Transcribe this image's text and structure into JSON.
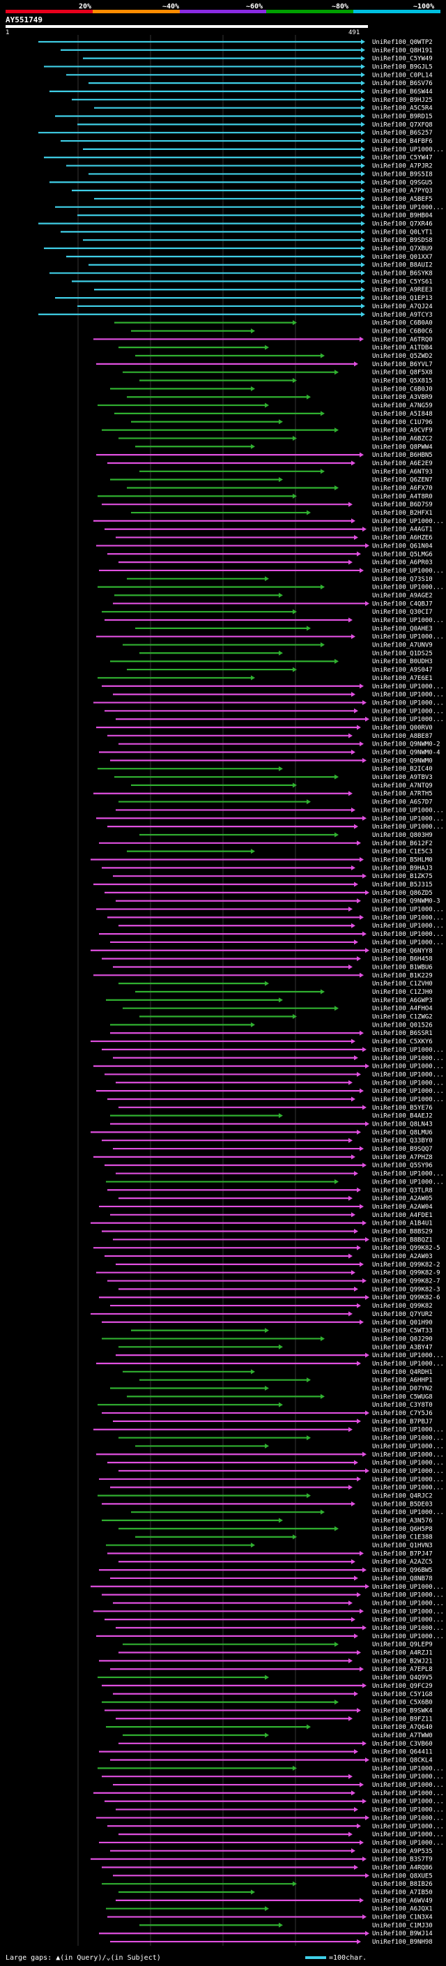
{
  "legend": {
    "ticks": [
      "20%",
      "~40%",
      "~60%",
      "~80%",
      "~100%"
    ],
    "colors": [
      "#e8001c",
      "#ff8c00",
      "#8a2be2",
      "#00a000",
      "#00c0e0"
    ]
  },
  "query": {
    "id": "AY551749",
    "start": "1",
    "end": "491"
  },
  "hits": [
    {
      "label": "UniRef100_Q0WTP2",
      "color": "#40d0e8"
    },
    {
      "label": "UniRef100_Q8H191",
      "color": "#40d0e8"
    },
    {
      "label": "UniRef100_C5YW49",
      "color": "#40d0e8"
    },
    {
      "label": "UniRef100_B9GJL5",
      "color": "#40d0e8"
    },
    {
      "label": "UniRef100_C0PL14",
      "color": "#40d0e8"
    },
    {
      "label": "UniRef100_B6SV76",
      "color": "#40d0e8"
    },
    {
      "label": "UniRef100_B6SW44",
      "color": "#40d0e8"
    },
    {
      "label": "UniRef100_B9HJ25",
      "color": "#40d0e8"
    },
    {
      "label": "UniRef100_A5C5R4",
      "color": "#40d0e8"
    },
    {
      "label": "UniRef100_B9RD15",
      "color": "#40d0e8"
    },
    {
      "label": "UniRef100_Q7XFQ8",
      "color": "#40d0e8"
    },
    {
      "label": "UniRef100_B6S257",
      "color": "#40d0e8"
    },
    {
      "label": "UniRef100_B4FBF6",
      "color": "#40d0e8"
    },
    {
      "label": "UniRef100_UP1000...",
      "color": "#40d0e8"
    },
    {
      "label": "UniRef100_C5YW47",
      "color": "#40d0e8"
    },
    {
      "label": "UniRef100_A7PJR2",
      "color": "#40d0e8"
    },
    {
      "label": "UniRef100_B9S5I8",
      "color": "#40d0e8"
    },
    {
      "label": "UniRef100_Q9SGU5",
      "color": "#40d0e8"
    },
    {
      "label": "UniRef100_A7PYQ3",
      "color": "#40d0e8"
    },
    {
      "label": "UniRef100_A5BEF5",
      "color": "#40d0e8"
    },
    {
      "label": "UniRef100_UP1000...",
      "color": "#40d0e8"
    },
    {
      "label": "UniRef100_B9HB04",
      "color": "#40d0e8"
    },
    {
      "label": "UniRef100_Q7XR46",
      "color": "#40d0e8"
    },
    {
      "label": "UniRef100_Q0LYT1",
      "color": "#40d0e8"
    },
    {
      "label": "UniRef100_B9SDS8",
      "color": "#40d0e8"
    },
    {
      "label": "UniRef100_Q7XBU9",
      "color": "#40d0e8"
    },
    {
      "label": "UniRef100_Q01XX7",
      "color": "#40d0e8"
    },
    {
      "label": "UniRef100_B8AUI2",
      "color": "#40d0e8"
    },
    {
      "label": "UniRef100_B6SYK8",
      "color": "#40d0e8"
    },
    {
      "label": "UniRef100_C5YS61",
      "color": "#40d0e8"
    },
    {
      "label": "UniRef100_A9REE3",
      "color": "#40d0e8"
    },
    {
      "label": "UniRef100_Q1EP13",
      "color": "#40d0e8"
    },
    {
      "label": "UniRef100_A7QJ24",
      "color": "#40d0e8"
    },
    {
      "label": "UniRef100_A9TCY3",
      "color": "#40d0e8"
    },
    {
      "label": "UniRef100_C6B0A0",
      "color": "#30b030"
    },
    {
      "label": "UniRef100_C6B0C6",
      "color": "#30b030"
    },
    {
      "label": "UniRef100_A6TRQ0",
      "color": "#e050e0"
    },
    {
      "label": "UniRef100_A1TDB4",
      "color": "#30b030"
    },
    {
      "label": "UniRef100_Q5ZWD2",
      "color": "#30b030"
    },
    {
      "label": "UniRef100_B6YVL7",
      "color": "#e050e0"
    },
    {
      "label": "UniRef100_Q8F5X8",
      "color": "#30b030"
    },
    {
      "label": "UniRef100_Q5X815",
      "color": "#30b030"
    },
    {
      "label": "UniRef100_C6B0J0",
      "color": "#30b030"
    },
    {
      "label": "UniRef100_A3VBR9",
      "color": "#30b030"
    },
    {
      "label": "UniRef100_A7NG59",
      "color": "#30b030"
    },
    {
      "label": "UniRef100_A5I848",
      "color": "#30b030"
    },
    {
      "label": "UniRef100_C1U796",
      "color": "#30b030"
    },
    {
      "label": "UniRef100_A9CVF9",
      "color": "#30b030"
    },
    {
      "label": "UniRef100_A6BZC2",
      "color": "#30b030"
    },
    {
      "label": "UniRef100_Q8PWW4",
      "color": "#30b030"
    },
    {
      "label": "UniRef100_B6HBN5",
      "color": "#e050e0"
    },
    {
      "label": "UniRef100_A6E2E9",
      "color": "#e050e0"
    },
    {
      "label": "UniRef100_A6NT93",
      "color": "#30b030"
    },
    {
      "label": "UniRef100_Q6ZEN7",
      "color": "#30b030"
    },
    {
      "label": "UniRef100_A6FX70",
      "color": "#30b030"
    },
    {
      "label": "UniRef100_A4T8R0",
      "color": "#30b030"
    },
    {
      "label": "UniRef100_B6D7S9",
      "color": "#e050e0"
    },
    {
      "label": "UniRef100_B2HFX1",
      "color": "#30b030"
    },
    {
      "label": "UniRef100_UP1000...",
      "color": "#e050e0"
    },
    {
      "label": "UniRef100_A4AGT1",
      "color": "#e050e0"
    },
    {
      "label": "UniRef100_A6HZE6",
      "color": "#e050e0"
    },
    {
      "label": "UniRef100_Q61N04",
      "color": "#e050e0"
    },
    {
      "label": "UniRef100_Q5LMG6",
      "color": "#e050e0"
    },
    {
      "label": "UniRef100_A6PR03",
      "color": "#e050e0"
    },
    {
      "label": "UniRef100_UP1000...",
      "color": "#e050e0"
    },
    {
      "label": "UniRef100_Q73S10",
      "color": "#30b030"
    },
    {
      "label": "UniRef100_UP1000...",
      "color": "#30b030"
    },
    {
      "label": "UniRef100_A9AGE2",
      "color": "#30b030"
    },
    {
      "label": "UniRef100_C4QBJ7",
      "color": "#e050e0"
    },
    {
      "label": "UniRef100_Q30CI7",
      "color": "#30b030"
    },
    {
      "label": "UniRef100_UP1000...",
      "color": "#e050e0"
    },
    {
      "label": "UniRef100_Q0AHE3",
      "color": "#30b030"
    },
    {
      "label": "UniRef100_UP1000...",
      "color": "#e050e0"
    },
    {
      "label": "UniRef100_A7UNV9",
      "color": "#30b030"
    },
    {
      "label": "UniRef100_Q1DS25",
      "color": "#30b030"
    },
    {
      "label": "UniRef100_B0UDH3",
      "color": "#30b030"
    },
    {
      "label": "UniRef100_A9S047",
      "color": "#30b030"
    },
    {
      "label": "UniRef100_A7E6E1",
      "color": "#30b030"
    },
    {
      "label": "UniRef100_UP1000...",
      "color": "#e050e0"
    },
    {
      "label": "UniRef100_UP1000...",
      "color": "#e050e0"
    },
    {
      "label": "UniRef100_UP1000...",
      "color": "#e050e0"
    },
    {
      "label": "UniRef100_UP1000...",
      "color": "#e050e0"
    },
    {
      "label": "UniRef100_UP1000...",
      "color": "#e050e0"
    },
    {
      "label": "UniRef100_Q00RV0",
      "color": "#e050e0"
    },
    {
      "label": "UniRef100_A8BE87",
      "color": "#e050e0"
    },
    {
      "label": "UniRef100_Q9NWM0-2",
      "color": "#e050e0"
    },
    {
      "label": "UniRef100_Q9NWM0-4",
      "color": "#e050e0"
    },
    {
      "label": "UniRef100_Q9NWM0",
      "color": "#e050e0"
    },
    {
      "label": "UniRef100_B2IC40",
      "color": "#30b030"
    },
    {
      "label": "UniRef100_A9TBV3",
      "color": "#30b030"
    },
    {
      "label": "UniRef100_A7NTQ9",
      "color": "#30b030"
    },
    {
      "label": "UniRef100_A7RTH5",
      "color": "#e050e0"
    },
    {
      "label": "UniRef100_A6S7D7",
      "color": "#30b030"
    },
    {
      "label": "UniRef100_UP1000...",
      "color": "#e050e0"
    },
    {
      "label": "UniRef100_UP1000...",
      "color": "#e050e0"
    },
    {
      "label": "UniRef100_UP1000...",
      "color": "#e050e0"
    },
    {
      "label": "UniRef100_Q803H9",
      "color": "#30b030"
    },
    {
      "label": "UniRef100_B612F2",
      "color": "#e050e0"
    },
    {
      "label": "UniRef100_C1E5C3",
      "color": "#30b030"
    },
    {
      "label": "UniRef100_B5HLM0",
      "color": "#e050e0"
    },
    {
      "label": "UniRef100_B9HAJ3",
      "color": "#e050e0"
    },
    {
      "label": "UniRef100_B1ZK75",
      "color": "#e050e0"
    },
    {
      "label": "UniRef100_B5J315",
      "color": "#e050e0"
    },
    {
      "label": "UniRef100_Q86ZD5",
      "color": "#e050e0"
    },
    {
      "label": "UniRef100_Q9NWM0-3",
      "color": "#e050e0"
    },
    {
      "label": "UniRef100_UP1000...",
      "color": "#e050e0"
    },
    {
      "label": "UniRef100_UP1000...",
      "color": "#e050e0"
    },
    {
      "label": "UniRef100_UP1000...",
      "color": "#e050e0"
    },
    {
      "label": "UniRef100_UP1000...",
      "color": "#e050e0"
    },
    {
      "label": "UniRef100_UP1000...",
      "color": "#e050e0"
    },
    {
      "label": "UniRef100_Q6NYY8",
      "color": "#e050e0"
    },
    {
      "label": "UniRef100_B6H458",
      "color": "#e050e0"
    },
    {
      "label": "UniRef100_B1WBU6",
      "color": "#e050e0"
    },
    {
      "label": "UniRef100_B1K229",
      "color": "#e050e0"
    },
    {
      "label": "UniRef100_C1ZVH0",
      "color": "#30b030"
    },
    {
      "label": "UniRef100_C1ZJH0",
      "color": "#30b030"
    },
    {
      "label": "UniRef100_A6GWP3",
      "color": "#30b030"
    },
    {
      "label": "UniRef100_A4FHO4",
      "color": "#30b030"
    },
    {
      "label": "UniRef100_C1ZWG2",
      "color": "#30b030"
    },
    {
      "label": "UniRef100_Q01526",
      "color": "#30b030"
    },
    {
      "label": "UniRef100_B6SSR1",
      "color": "#e050e0"
    },
    {
      "label": "UniRef100_C5XKY6",
      "color": "#e050e0"
    },
    {
      "label": "UniRef100_UP1000...",
      "color": "#e050e0"
    },
    {
      "label": "UniRef100_UP1000...",
      "color": "#e050e0"
    },
    {
      "label": "UniRef100_UP1000...",
      "color": "#e050e0"
    },
    {
      "label": "UniRef100_UP1000...",
      "color": "#e050e0"
    },
    {
      "label": "UniRef100_UP1000...",
      "color": "#e050e0"
    },
    {
      "label": "UniRef100_UP1000...",
      "color": "#e050e0"
    },
    {
      "label": "UniRef100_UP1000...",
      "color": "#e050e0"
    },
    {
      "label": "UniRef100_B5YE76",
      "color": "#e050e0"
    },
    {
      "label": "UniRef100_B4AEJ2",
      "color": "#30b030"
    },
    {
      "label": "UniRef100_Q8LN43",
      "color": "#e050e0"
    },
    {
      "label": "UniRef100_Q8LMU6",
      "color": "#e050e0"
    },
    {
      "label": "UniRef100_Q33BY0",
      "color": "#e050e0"
    },
    {
      "label": "UniRef100_B9SQQ7",
      "color": "#e050e0"
    },
    {
      "label": "UniRef100_A7PHZ8",
      "color": "#e050e0"
    },
    {
      "label": "UniRef100_Q5SY96",
      "color": "#e050e0"
    },
    {
      "label": "UniRef100_UP1000...",
      "color": "#e050e0"
    },
    {
      "label": "UniRef100_UP1000...",
      "color": "#30b030"
    },
    {
      "label": "UniRef100_Q3TLR8",
      "color": "#e050e0"
    },
    {
      "label": "UniRef100_A2AW05",
      "color": "#e050e0"
    },
    {
      "label": "UniRef100_A2AW04",
      "color": "#e050e0"
    },
    {
      "label": "UniRef100_A4FDE1",
      "color": "#e050e0"
    },
    {
      "label": "UniRef100_A1B4U1",
      "color": "#e050e0"
    },
    {
      "label": "UniRef100_B8BS29",
      "color": "#e050e0"
    },
    {
      "label": "UniRef100_B8BQZ1",
      "color": "#e050e0"
    },
    {
      "label": "UniRef100_Q99K82-5",
      "color": "#e050e0"
    },
    {
      "label": "UniRef100_A2AW03",
      "color": "#e050e0"
    },
    {
      "label": "UniRef100_Q99K82-2",
      "color": "#e050e0"
    },
    {
      "label": "UniRef100_Q99K82-9",
      "color": "#e050e0"
    },
    {
      "label": "UniRef100_Q99K82-7",
      "color": "#e050e0"
    },
    {
      "label": "UniRef100_Q99K82-3",
      "color": "#e050e0"
    },
    {
      "label": "UniRef100_Q99K82-6",
      "color": "#e050e0"
    },
    {
      "label": "UniRef100_Q99K82",
      "color": "#e050e0"
    },
    {
      "label": "UniRef100_Q7YUR2",
      "color": "#e050e0"
    },
    {
      "label": "UniRef100_Q01H90",
      "color": "#e050e0"
    },
    {
      "label": "UniRef100_C5WT33",
      "color": "#30b030"
    },
    {
      "label": "UniRef100_Q0J290",
      "color": "#30b030"
    },
    {
      "label": "UniRef100_A3BY47",
      "color": "#30b030"
    },
    {
      "label": "UniRef100_UP1000...",
      "color": "#e050e0"
    },
    {
      "label": "UniRef100_UP1000...",
      "color": "#e050e0"
    },
    {
      "label": "UniRef100_Q4RDH1",
      "color": "#30b030"
    },
    {
      "label": "UniRef100_A6HHP1",
      "color": "#30b030"
    },
    {
      "label": "UniRef100_D07YN2",
      "color": "#30b030"
    },
    {
      "label": "UniRef100_C5WUG8",
      "color": "#30b030"
    },
    {
      "label": "UniRef100_C3Y8T0",
      "color": "#30b030"
    },
    {
      "label": "UniRef100_C7Y5J6",
      "color": "#e050e0"
    },
    {
      "label": "UniRef100_B7PBJ7",
      "color": "#e050e0"
    },
    {
      "label": "UniRef100_UP1000...",
      "color": "#e050e0"
    },
    {
      "label": "UniRef100_UP1000...",
      "color": "#30b030"
    },
    {
      "label": "UniRef100_UP1000...",
      "color": "#30b030"
    },
    {
      "label": "UniRef100_UP1000...",
      "color": "#e050e0"
    },
    {
      "label": "UniRef100_UP1000...",
      "color": "#e050e0"
    },
    {
      "label": "UniRef100_UP1000...",
      "color": "#e050e0"
    },
    {
      "label": "UniRef100_UP1000...",
      "color": "#e050e0"
    },
    {
      "label": "UniRef100_UP1000...",
      "color": "#e050e0"
    },
    {
      "label": "UniRef100_Q4RJC2",
      "color": "#30b030"
    },
    {
      "label": "UniRef100_B5DE03",
      "color": "#e050e0"
    },
    {
      "label": "UniRef100_UP1000...",
      "color": "#30b030"
    },
    {
      "label": "UniRef100_A3N576",
      "color": "#30b030"
    },
    {
      "label": "UniRef100_Q6H5P8",
      "color": "#30b030"
    },
    {
      "label": "UniRef100_C1E388",
      "color": "#30b030"
    },
    {
      "label": "UniRef100_Q1HVN3",
      "color": "#30b030"
    },
    {
      "label": "UniRef100_B7PJ47",
      "color": "#e050e0"
    },
    {
      "label": "UniRef100_A2AZC5",
      "color": "#e050e0"
    },
    {
      "label": "UniRef100_Q96BW5",
      "color": "#e050e0"
    },
    {
      "label": "UniRef100_Q8NB78",
      "color": "#e050e0"
    },
    {
      "label": "UniRef100_UP1000...",
      "color": "#e050e0"
    },
    {
      "label": "UniRef100_UP1000...",
      "color": "#e050e0"
    },
    {
      "label": "UniRef100_UP1000...",
      "color": "#e050e0"
    },
    {
      "label": "UniRef100_UP1000...",
      "color": "#e050e0"
    },
    {
      "label": "UniRef100_UP1000...",
      "color": "#e050e0"
    },
    {
      "label": "UniRef100_UP1000...",
      "color": "#e050e0"
    },
    {
      "label": "UniRef100_UP1000...",
      "color": "#e050e0"
    },
    {
      "label": "UniRef100_Q9LEP9",
      "color": "#30b030"
    },
    {
      "label": "UniRef100_A4RZJ1",
      "color": "#e050e0"
    },
    {
      "label": "UniRef100_B2WJ21",
      "color": "#e050e0"
    },
    {
      "label": "UniRef100_A7EPL8",
      "color": "#e050e0"
    },
    {
      "label": "UniRef100_Q4Q9V5",
      "color": "#30b030"
    },
    {
      "label": "UniRef100_Q9FC29",
      "color": "#e050e0"
    },
    {
      "label": "UniRef100_C5Y1G8",
      "color": "#e050e0"
    },
    {
      "label": "UniRef100_C5X6B0",
      "color": "#30b030"
    },
    {
      "label": "UniRef100_B9SWK4",
      "color": "#e050e0"
    },
    {
      "label": "UniRef100_B9FZ11",
      "color": "#e050e0"
    },
    {
      "label": "UniRef100_A7Q640",
      "color": "#30b030"
    },
    {
      "label": "UniRef100_A7TWW0",
      "color": "#30b030"
    },
    {
      "label": "UniRef100_C3VB60",
      "color": "#e050e0"
    },
    {
      "label": "UniRef100_Q64411",
      "color": "#e050e0"
    },
    {
      "label": "UniRef100_Q8CKL4",
      "color": "#e050e0"
    },
    {
      "label": "UniRef100_UP1000...",
      "color": "#30b030"
    },
    {
      "label": "UniRef100_UP1000...",
      "color": "#e050e0"
    },
    {
      "label": "UniRef100_UP1000...",
      "color": "#e050e0"
    },
    {
      "label": "UniRef100_UP1000...",
      "color": "#e050e0"
    },
    {
      "label": "UniRef100_UP1000...",
      "color": "#e050e0"
    },
    {
      "label": "UniRef100_UP1000...",
      "color": "#e050e0"
    },
    {
      "label": "UniRef100_UP1000...",
      "color": "#e050e0"
    },
    {
      "label": "UniRef100_UP1000...",
      "color": "#e050e0"
    },
    {
      "label": "UniRef100_UP1000...",
      "color": "#e050e0"
    },
    {
      "label": "UniRef100_UP1000...",
      "color": "#e050e0"
    },
    {
      "label": "UniRef100_A9P535",
      "color": "#e050e0"
    },
    {
      "label": "UniRef100_B3S7T9",
      "color": "#e050e0"
    },
    {
      "label": "UniRef100_A4RQ86",
      "color": "#e050e0"
    },
    {
      "label": "UniRef100_Q8XUE5",
      "color": "#e050e0"
    },
    {
      "label": "UniRef100_B8IB26",
      "color": "#30b030"
    },
    {
      "label": "UniRef100_A7IB50",
      "color": "#30b030"
    },
    {
      "label": "UniRef100_A6WV49",
      "color": "#e050e0"
    },
    {
      "label": "UniRef100_A6JQX1",
      "color": "#30b030"
    },
    {
      "label": "UniRef100_C1N3X4",
      "color": "#e050e0"
    },
    {
      "label": "UniRef100_C1MJ30",
      "color": "#30b030"
    },
    {
      "label": "UniRef100_B9WJ14",
      "color": "#e050e0"
    },
    {
      "label": "UniRef100_B9NH98",
      "color": "#e050e0"
    }
  ],
  "footer": {
    "gaps_note": "Large gaps: ▲(in Query)/⌄(in Subject)",
    "scale_note": "=100char."
  }
}
